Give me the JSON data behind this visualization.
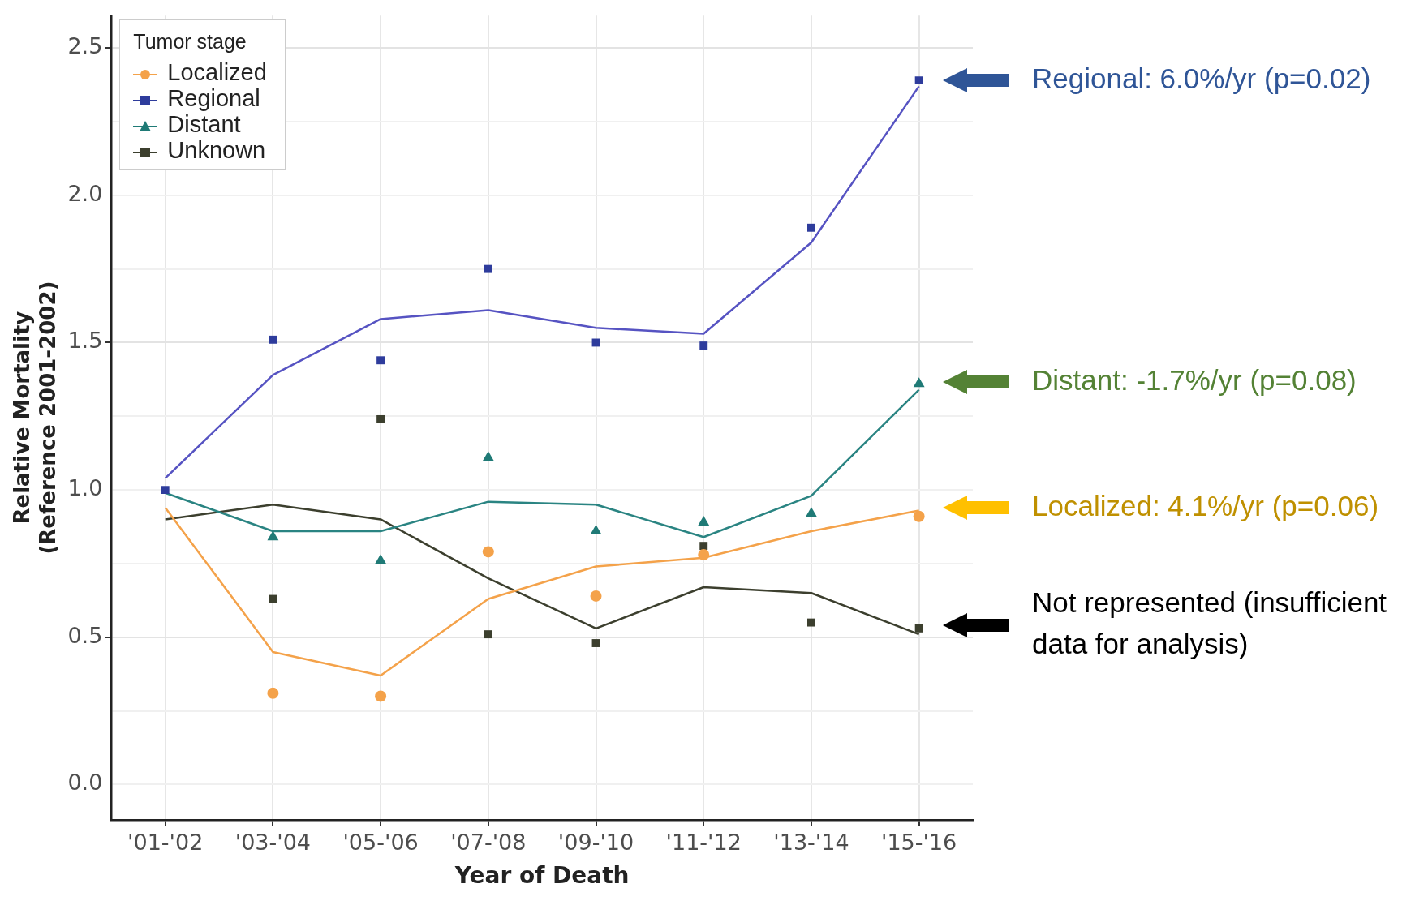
{
  "chart_data": {
    "type": "scatter",
    "xlabel": "Year of Death",
    "ylabel": "Relative Mortality (Reference 2001-2002)",
    "legend_title": "Tumor stage",
    "legend": "top left",
    "grid": true,
    "categories": [
      "'01-'02",
      "'03-'04",
      "'05-'06",
      "'07-'08",
      "'09-'10",
      "'11-'12",
      "'13-'14",
      "'15-'16"
    ],
    "ylim": [
      -0.12,
      2.61
    ],
    "yticks": [
      {
        "value": 0,
        "label": "0.0"
      },
      {
        "value": 0.25,
        "label": null
      },
      0.5,
      {
        "value": 0.75,
        "label": null
      },
      {
        "value": 1,
        "label": "1.0"
      },
      {
        "value": 1.25,
        "label": null
      },
      1.5,
      {
        "value": 1.75,
        "label": null
      },
      {
        "value": 2,
        "label": "2.0"
      },
      {
        "value": 2.25,
        "label": null
      },
      2.5
    ],
    "series": [
      {
        "name": "Localized",
        "marker": "circle",
        "color": "#f4a24a",
        "values": [
          null,
          0.31,
          0.3,
          0.79,
          0.64,
          0.78,
          null,
          0.91
        ]
      },
      {
        "name": "Regional",
        "marker": "square",
        "color": "#2e3c9c",
        "values": [
          1.0,
          1.51,
          1.44,
          1.75,
          1.5,
          1.49,
          1.89,
          2.39
        ]
      },
      {
        "name": "Distant",
        "marker": "triangle",
        "color": "#1f7a76",
        "values": [
          null,
          0.84,
          0.76,
          1.11,
          0.86,
          0.89,
          0.92,
          1.36
        ]
      },
      {
        "name": "Unknown",
        "marker": "square",
        "color": "#3c3f2e",
        "values": [
          null,
          0.63,
          1.24,
          0.51,
          0.48,
          0.81,
          0.55,
          0.53
        ]
      },
      {
        "type": "line",
        "color": "#f4a24a",
        "values": [
          0.94,
          0.45,
          0.37,
          0.63,
          0.74,
          0.77,
          0.86,
          0.93
        ]
      },
      {
        "type": "line",
        "color": "#5653c2",
        "values": [
          1.04,
          1.39,
          1.58,
          1.61,
          1.55,
          1.53,
          1.84,
          2.37
        ]
      },
      {
        "type": "line",
        "color": "#2a8482",
        "values": [
          0.99,
          0.86,
          0.86,
          0.96,
          0.95,
          0.84,
          0.98,
          1.34
        ]
      },
      {
        "type": "line",
        "color": "#3c3f2e",
        "values": [
          0.9,
          0.95,
          0.9,
          0.7,
          0.53,
          0.67,
          0.65,
          0.51
        ]
      }
    ],
    "annotations": [
      "Regional: 6.0%/yr (p=0.02)",
      "Distant: -1.7%/yr (p=0.08)",
      "Localized: 4.1%/yr (p=0.06)",
      "Not represented (insufficient data for analysis)"
    ]
  }
}
